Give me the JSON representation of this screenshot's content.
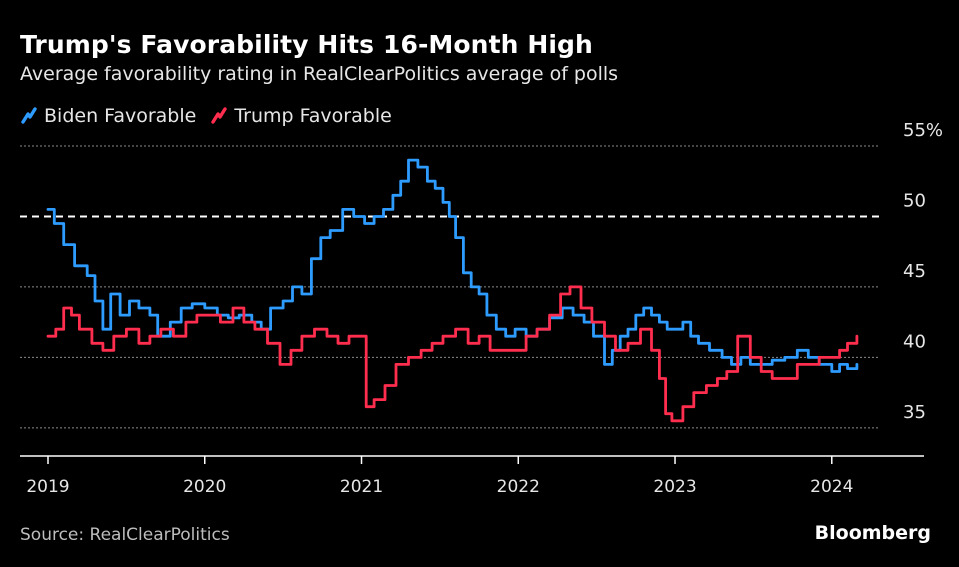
{
  "title": "Trump's Favorability Hits 16-Month High",
  "subtitle": "Average favorability rating in RealClearPolitics average of polls",
  "source": "Source: RealClearPolitics",
  "brand": "Bloomberg",
  "colors": {
    "biden": "#2e9bff",
    "trump": "#ff2d4e",
    "grid": "#8c8c8c",
    "reference": "#ffffff",
    "axis": "#ffffff"
  },
  "icons": {
    "legend_marker": "diagonal-line-icon"
  },
  "chart_data": {
    "type": "line",
    "title": "Trump's Favorability Hits 16-Month High",
    "subtitle": "Average favorability rating in RealClearPolitics average of polls",
    "xlabel": "",
    "ylabel": "",
    "ylim": [
      33,
      55
    ],
    "xlim": [
      2019.0,
      2024.55
    ],
    "y_ticks": [
      {
        "value": 55,
        "label": "55%"
      },
      {
        "value": 50,
        "label": "50"
      },
      {
        "value": 45,
        "label": "45"
      },
      {
        "value": 40,
        "label": "40"
      },
      {
        "value": 35,
        "label": "35"
      }
    ],
    "x_ticks": [
      {
        "value": 2019,
        "label": "2019"
      },
      {
        "value": 2020,
        "label": "2020"
      },
      {
        "value": 2021,
        "label": "2021"
      },
      {
        "value": 2022,
        "label": "2022"
      },
      {
        "value": 2023,
        "label": "2023"
      },
      {
        "value": 2024,
        "label": "2024"
      }
    ],
    "reference_line": {
      "y": 50,
      "style": "dashed"
    },
    "grid": true,
    "legend": {
      "placement": "top-left"
    },
    "series": [
      {
        "name": "Biden Favorable",
        "color": "#2e9bff",
        "x": [
          2019.0,
          2019.04,
          2019.1,
          2019.17,
          2019.25,
          2019.3,
          2019.35,
          2019.4,
          2019.46,
          2019.52,
          2019.58,
          2019.65,
          2019.7,
          2019.78,
          2019.85,
          2019.92,
          2020.0,
          2020.08,
          2020.15,
          2020.22,
          2020.3,
          2020.36,
          2020.42,
          2020.5,
          2020.56,
          2020.62,
          2020.68,
          2020.74,
          2020.8,
          2020.88,
          2020.95,
          2021.02,
          2021.08,
          2021.14,
          2021.2,
          2021.25,
          2021.3,
          2021.36,
          2021.42,
          2021.47,
          2021.52,
          2021.56,
          2021.6,
          2021.65,
          2021.7,
          2021.75,
          2021.8,
          2021.86,
          2021.92,
          2021.98,
          2022.05,
          2022.12,
          2022.2,
          2022.28,
          2022.35,
          2022.42,
          2022.48,
          2022.55,
          2022.6,
          2022.65,
          2022.7,
          2022.75,
          2022.8,
          2022.85,
          2022.9,
          2022.95,
          2023.0,
          2023.05,
          2023.1,
          2023.15,
          2023.22,
          2023.3,
          2023.36,
          2023.42,
          2023.48,
          2023.55,
          2023.62,
          2023.7,
          2023.78,
          2023.85,
          2023.92,
          2024.0,
          2024.05,
          2024.1,
          2024.16
        ],
        "values": [
          50.5,
          49.5,
          48.0,
          46.5,
          45.8,
          44.0,
          42.0,
          44.5,
          43.0,
          44.0,
          43.5,
          43.0,
          41.5,
          42.5,
          43.5,
          43.8,
          43.5,
          43.0,
          42.8,
          43.0,
          42.5,
          42.0,
          43.5,
          44.0,
          45.0,
          44.5,
          47.0,
          48.5,
          49.0,
          50.5,
          50.0,
          49.5,
          50.0,
          50.5,
          51.5,
          52.5,
          54.0,
          53.5,
          52.5,
          52.0,
          51.0,
          50.0,
          48.5,
          46.0,
          45.0,
          44.5,
          43.0,
          42.0,
          41.5,
          42.0,
          41.5,
          42.0,
          42.8,
          43.5,
          43.0,
          42.5,
          41.5,
          39.5,
          40.5,
          41.5,
          42.0,
          43.0,
          43.5,
          43.0,
          42.5,
          42.0,
          42.0,
          42.5,
          41.5,
          41.0,
          40.5,
          40.0,
          39.5,
          40.0,
          39.5,
          39.5,
          39.8,
          40.0,
          40.5,
          40.0,
          39.5,
          39.0,
          39.5,
          39.2,
          39.5
        ]
      },
      {
        "name": "Trump Favorable",
        "color": "#ff2d4e",
        "x": [
          2019.0,
          2019.05,
          2019.1,
          2019.15,
          2019.2,
          2019.28,
          2019.35,
          2019.42,
          2019.5,
          2019.58,
          2019.65,
          2019.72,
          2019.8,
          2019.88,
          2019.95,
          2020.02,
          2020.1,
          2020.18,
          2020.25,
          2020.32,
          2020.4,
          2020.48,
          2020.55,
          2020.62,
          2020.7,
          2020.78,
          2020.85,
          2020.92,
          2020.98,
          2021.03,
          2021.08,
          2021.15,
          2021.22,
          2021.3,
          2021.38,
          2021.45,
          2021.52,
          2021.6,
          2021.68,
          2021.75,
          2021.82,
          2021.9,
          2021.98,
          2022.05,
          2022.12,
          2022.2,
          2022.27,
          2022.33,
          2022.4,
          2022.47,
          2022.55,
          2022.62,
          2022.7,
          2022.78,
          2022.85,
          2022.9,
          2022.94,
          2022.98,
          2023.05,
          2023.12,
          2023.2,
          2023.27,
          2023.33,
          2023.4,
          2023.48,
          2023.55,
          2023.62,
          2023.7,
          2023.78,
          2023.85,
          2023.92,
          2024.0,
          2024.05,
          2024.1,
          2024.16
        ],
        "values": [
          41.5,
          42.0,
          43.5,
          43.0,
          42.0,
          41.0,
          40.5,
          41.5,
          42.0,
          41.0,
          41.5,
          42.0,
          41.5,
          42.5,
          43.0,
          43.0,
          42.5,
          43.5,
          42.5,
          42.0,
          41.0,
          39.5,
          40.5,
          41.5,
          42.0,
          41.5,
          41.0,
          41.5,
          41.5,
          36.5,
          37.0,
          38.0,
          39.5,
          40.0,
          40.5,
          41.0,
          41.5,
          42.0,
          41.0,
          41.5,
          40.5,
          40.5,
          40.5,
          41.5,
          42.0,
          43.0,
          44.5,
          45.0,
          43.5,
          42.5,
          41.5,
          40.5,
          41.0,
          42.0,
          40.5,
          38.5,
          36.0,
          35.5,
          36.5,
          37.5,
          38.0,
          38.5,
          39.0,
          41.5,
          40.0,
          39.0,
          38.5,
          38.5,
          39.5,
          39.5,
          40.0,
          40.0,
          40.5,
          41.0,
          41.5
        ]
      }
    ]
  }
}
